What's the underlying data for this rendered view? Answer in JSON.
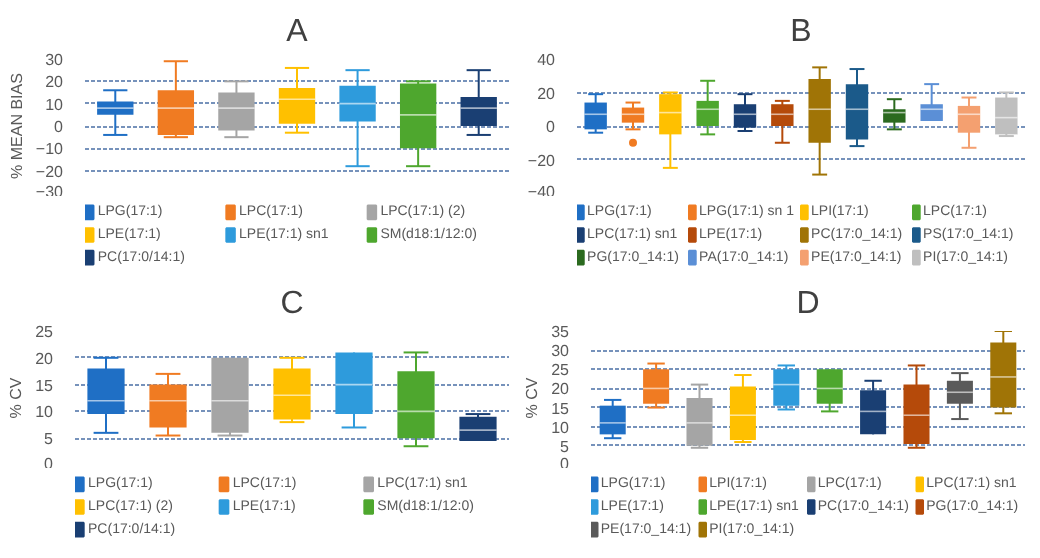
{
  "chart_data": [
    {
      "type": "box",
      "title": "A",
      "ylabel": "% MEAN BIAS",
      "ylim": [
        -30,
        30
      ],
      "yticks": [
        -30,
        -20,
        -10,
        0,
        10,
        20,
        30
      ],
      "grid": "y",
      "legend": "bottom",
      "tick_labels": "y",
      "categories": [
        null,
        null,
        null,
        null,
        null,
        null,
        null
      ],
      "series": [
        {
          "name": "LPG(17:1)",
          "color": "#1f6fc5",
          "boxes": [
            {
              "low": -4,
              "q1": 5,
              "median": 8,
              "q3": 11,
              "high": 16
            },
            null,
            null,
            null,
            null,
            null,
            null
          ]
        },
        {
          "name": "LPC(17:1)",
          "color": "#f07b22",
          "boxes": [
            null,
            {
              "low": -5,
              "q1": -4,
              "median": 8,
              "q3": 16,
              "high": 29
            },
            null,
            null,
            null,
            null,
            null
          ]
        },
        {
          "name": "LPC(17:1) (2)",
          "color": "#a5a5a5",
          "boxes": [
            null,
            null,
            {
              "low": -5,
              "q1": -2,
              "median": 8,
              "q3": 15,
              "high": 20
            },
            null,
            null,
            null,
            null
          ]
        },
        {
          "name": "LPE(17:1)",
          "color": "#ffc000",
          "boxes": [
            null,
            null,
            null,
            {
              "low": -3,
              "q1": 1,
              "median": 12,
              "q3": 17,
              "high": 26
            },
            null,
            null,
            null
          ]
        },
        {
          "name": "LPE(17:1) sn1",
          "color": "#2e9bdc",
          "boxes": [
            null,
            null,
            null,
            null,
            {
              "low": -18,
              "q1": 2,
              "median": 10,
              "q3": 18,
              "high": 25
            },
            null,
            null
          ]
        },
        {
          "name": "SM(d18:1/12:0)",
          "color": "#4ea72e",
          "boxes": [
            null,
            null,
            null,
            null,
            null,
            {
              "low": -18,
              "q1": -10,
              "median": 5,
              "q3": 19,
              "high": 20
            },
            null
          ]
        },
        {
          "name": "PC(17:0/14:1)",
          "color": "#1a3f73",
          "boxes": [
            null,
            null,
            null,
            null,
            null,
            null,
            {
              "low": -4,
              "q1": 0,
              "median": 8,
              "q3": 13,
              "high": 25
            }
          ]
        }
      ]
    },
    {
      "type": "box",
      "title": "B",
      "ylim": [
        -40,
        40
      ],
      "yticks": [
        -40,
        -20,
        0,
        20,
        40
      ],
      "grid": "y",
      "legend": "bottom",
      "tick_labels": "y",
      "categories": [
        null,
        null,
        null,
        null,
        null,
        null,
        null,
        null,
        null,
        null,
        null,
        null
      ],
      "series": [
        {
          "name": "LPG(17:1)",
          "color": "#1f6fc5",
          "boxes": [
            {
              "low": -4,
              "q1": -2,
              "median": 7,
              "q3": 14,
              "high": 19
            },
            null,
            null,
            null,
            null,
            null,
            null,
            null,
            null,
            null,
            null,
            null
          ]
        },
        {
          "name": "LPG(17:1) sn 1",
          "color": "#f07b22",
          "boxes": [
            null,
            {
              "low": -2,
              "q1": 2,
              "median": 7,
              "q3": 11,
              "high": 14,
              "outliers": [
                -10
              ]
            },
            null,
            null,
            null,
            null,
            null,
            null,
            null,
            null,
            null,
            null
          ]
        },
        {
          "name": "LPI(17:1)",
          "color": "#ffc000",
          "boxes": [
            null,
            null,
            {
              "low": -25,
              "q1": -5,
              "median": 8,
              "q3": 19,
              "high": 20
            },
            null,
            null,
            null,
            null,
            null,
            null,
            null,
            null,
            null
          ]
        },
        {
          "name": "LPC(17:1)",
          "color": "#4ea72e",
          "boxes": [
            null,
            null,
            null,
            {
              "low": -5,
              "q1": 0,
              "median": 10,
              "q3": 15,
              "high": 27
            },
            null,
            null,
            null,
            null,
            null,
            null,
            null,
            null
          ]
        },
        {
          "name": "LPC(17:1) sn1",
          "color": "#1a3f73",
          "boxes": [
            null,
            null,
            null,
            null,
            {
              "low": -3,
              "q1": -1,
              "median": 7,
              "q3": 13,
              "high": 19
            },
            null,
            null,
            null,
            null,
            null,
            null,
            null
          ]
        },
        {
          "name": "LPE(17:1)",
          "color": "#b54a0a",
          "boxes": [
            null,
            null,
            null,
            null,
            null,
            {
              "low": -10,
              "q1": 0,
              "median": 7,
              "q3": 13,
              "high": 15
            },
            null,
            null,
            null,
            null,
            null,
            null
          ]
        },
        {
          "name": "PC(17:0_14:1)",
          "color": "#a07406",
          "boxes": [
            null,
            null,
            null,
            null,
            null,
            null,
            {
              "low": -29,
              "q1": -10,
              "median": 10,
              "q3": 28,
              "high": 35
            },
            null,
            null,
            null,
            null,
            null
          ]
        },
        {
          "name": "PS(17:0_14:1)",
          "color": "#1b5a8a",
          "boxes": [
            null,
            null,
            null,
            null,
            null,
            null,
            null,
            {
              "low": -12,
              "q1": -8,
              "median": 10,
              "q3": 25,
              "high": 34
            },
            null,
            null,
            null,
            null
          ]
        },
        {
          "name": "PG(17:0_14:1)",
          "color": "#2b6a1f",
          "boxes": [
            null,
            null,
            null,
            null,
            null,
            null,
            null,
            null,
            {
              "low": -2,
              "q1": 2,
              "median": 8,
              "q3": 10,
              "high": 16
            },
            null,
            null,
            null
          ]
        },
        {
          "name": "PA(17:0_14:1)",
          "color": "#5b8fd6",
          "boxes": [
            null,
            null,
            null,
            null,
            null,
            null,
            null,
            null,
            null,
            {
              "low": 3,
              "q1": 3,
              "median": 10,
              "q3": 13,
              "high": 25
            },
            null,
            null
          ]
        },
        {
          "name": "PE(17:0_14:1)",
          "color": "#f4a070",
          "boxes": [
            null,
            null,
            null,
            null,
            null,
            null,
            null,
            null,
            null,
            null,
            {
              "low": -13,
              "q1": -4,
              "median": 7,
              "q3": 12,
              "high": 17
            },
            null
          ]
        },
        {
          "name": "PI(17:0_14:1)",
          "color": "#bfbfbf",
          "boxes": [
            null,
            null,
            null,
            null,
            null,
            null,
            null,
            null,
            null,
            null,
            null,
            {
              "low": -6,
              "q1": -5,
              "median": 5,
              "q3": 17,
              "high": 20
            }
          ]
        }
      ]
    },
    {
      "type": "box",
      "title": "C",
      "ylabel": "% CV",
      "ylim": [
        0,
        25
      ],
      "yticks": [
        0,
        5,
        10,
        15,
        20,
        25
      ],
      "grid": "y",
      "legend": "bottom",
      "tick_labels": "y",
      "categories": [
        null,
        null,
        null,
        null,
        null,
        null,
        null
      ],
      "series": [
        {
          "name": "LPG(17:1)",
          "color": "#1f6fc5",
          "boxes": [
            {
              "low": 6,
              "q1": 9.5,
              "median": 12,
              "q3": 18,
              "high": 20
            },
            null,
            null,
            null,
            null,
            null,
            null
          ]
        },
        {
          "name": "LPC(17:1)",
          "color": "#f07b22",
          "boxes": [
            null,
            {
              "low": 5.5,
              "q1": 7,
              "median": 12,
              "q3": 15,
              "high": 17
            },
            null,
            null,
            null,
            null,
            null
          ]
        },
        {
          "name": "LPC(17:1) sn1",
          "color": "#a5a5a5",
          "boxes": [
            null,
            null,
            {
              "low": 5.5,
              "q1": 6,
              "median": 12,
              "q3": 20,
              "high": 20
            },
            null,
            null,
            null,
            null
          ]
        },
        {
          "name": "LPC(17:1) (2)",
          "color": "#ffc000",
          "boxes": [
            null,
            null,
            null,
            {
              "low": 8,
              "q1": 8.5,
              "median": 13,
              "q3": 18,
              "high": 20
            },
            null,
            null,
            null
          ]
        },
        {
          "name": "LPE(17:1)",
          "color": "#2e9bdc",
          "boxes": [
            null,
            null,
            null,
            null,
            {
              "low": 7,
              "q1": 9.5,
              "median": 15,
              "q3": 21,
              "high": 21
            },
            null,
            null
          ]
        },
        {
          "name": "SM(d18:1/12:0)",
          "color": "#4ea72e",
          "boxes": [
            null,
            null,
            null,
            null,
            null,
            {
              "low": 3.5,
              "q1": 5,
              "median": 10,
              "q3": 17.5,
              "high": 21
            },
            null
          ]
        },
        {
          "name": "PC(17:0/14:1)",
          "color": "#1a3f73",
          "boxes": [
            null,
            null,
            null,
            null,
            null,
            null,
            {
              "low": 4.5,
              "q1": 4.5,
              "median": 6.5,
              "q3": 9,
              "high": 9.5
            }
          ]
        }
      ]
    },
    {
      "type": "box",
      "title": "D",
      "ylabel": "% CV",
      "ylim": [
        0,
        35
      ],
      "yticks": [
        0,
        5,
        10,
        15,
        20,
        25,
        30,
        35
      ],
      "grid": "y",
      "legend": "bottom",
      "tick_labels": "y",
      "categories": [
        null,
        null,
        null,
        null,
        null,
        null,
        null,
        null,
        null,
        null
      ],
      "series": [
        {
          "name": "LPG(17:1)",
          "color": "#1f6fc5",
          "boxes": [
            {
              "low": 7,
              "q1": 8,
              "median": 11,
              "q3": 15.5,
              "high": 17
            },
            null,
            null,
            null,
            null,
            null,
            null,
            null,
            null,
            null
          ]
        },
        {
          "name": "LPI(17:1)",
          "color": "#f07b22",
          "boxes": [
            null,
            {
              "low": 15,
              "q1": 16,
              "median": 20,
              "q3": 25,
              "high": 26.5
            },
            null,
            null,
            null,
            null,
            null,
            null,
            null,
            null
          ]
        },
        {
          "name": "LPC(17:1)",
          "color": "#a5a5a5",
          "boxes": [
            null,
            null,
            {
              "low": 4.5,
              "q1": 5,
              "median": 11,
              "q3": 17.5,
              "high": 21
            },
            null,
            null,
            null,
            null,
            null,
            null,
            null
          ]
        },
        {
          "name": "LPC(17:1) sn1",
          "color": "#ffc000",
          "boxes": [
            null,
            null,
            null,
            {
              "low": 6,
              "q1": 6.5,
              "median": 13,
              "q3": 20.5,
              "high": 23.5
            },
            null,
            null,
            null,
            null,
            null,
            null
          ]
        },
        {
          "name": "LPE(17:1)",
          "color": "#2e9bdc",
          "boxes": [
            null,
            null,
            null,
            null,
            {
              "low": 14.5,
              "q1": 15.5,
              "median": 21,
              "q3": 25,
              "high": 26
            },
            null,
            null,
            null,
            null,
            null
          ]
        },
        {
          "name": "LPE(17:1) sn1",
          "color": "#4ea72e",
          "boxes": [
            null,
            null,
            null,
            null,
            null,
            {
              "low": 14,
              "q1": 16,
              "median": 20,
              "q3": 25,
              "high": 25
            },
            null,
            null,
            null,
            null
          ]
        },
        {
          "name": "PC(17:0_14:1)",
          "color": "#1a3f73",
          "boxes": [
            null,
            null,
            null,
            null,
            null,
            null,
            {
              "low": 8,
              "q1": 8,
              "median": 14,
              "q3": 19.5,
              "high": 22
            },
            null,
            null,
            null
          ]
        },
        {
          "name": "PG(17:0_14:1)",
          "color": "#b54a0a",
          "boxes": [
            null,
            null,
            null,
            null,
            null,
            null,
            null,
            {
              "low": 4.5,
              "q1": 5.5,
              "median": 13,
              "q3": 21,
              "high": 26
            },
            null,
            null
          ]
        },
        {
          "name": "PE(17:0_14:1)",
          "color": "#5a5a5a",
          "boxes": [
            null,
            null,
            null,
            null,
            null,
            null,
            null,
            null,
            {
              "low": 12,
              "q1": 16,
              "median": 19,
              "q3": 22,
              "high": 24
            },
            null
          ]
        },
        {
          "name": "PI(17:0_14:1)",
          "color": "#a07406",
          "boxes": [
            null,
            null,
            null,
            null,
            null,
            null,
            null,
            null,
            null,
            {
              "low": 13.5,
              "q1": 15,
              "median": 23,
              "q3": 32,
              "high": 35
            }
          ]
        }
      ]
    }
  ]
}
